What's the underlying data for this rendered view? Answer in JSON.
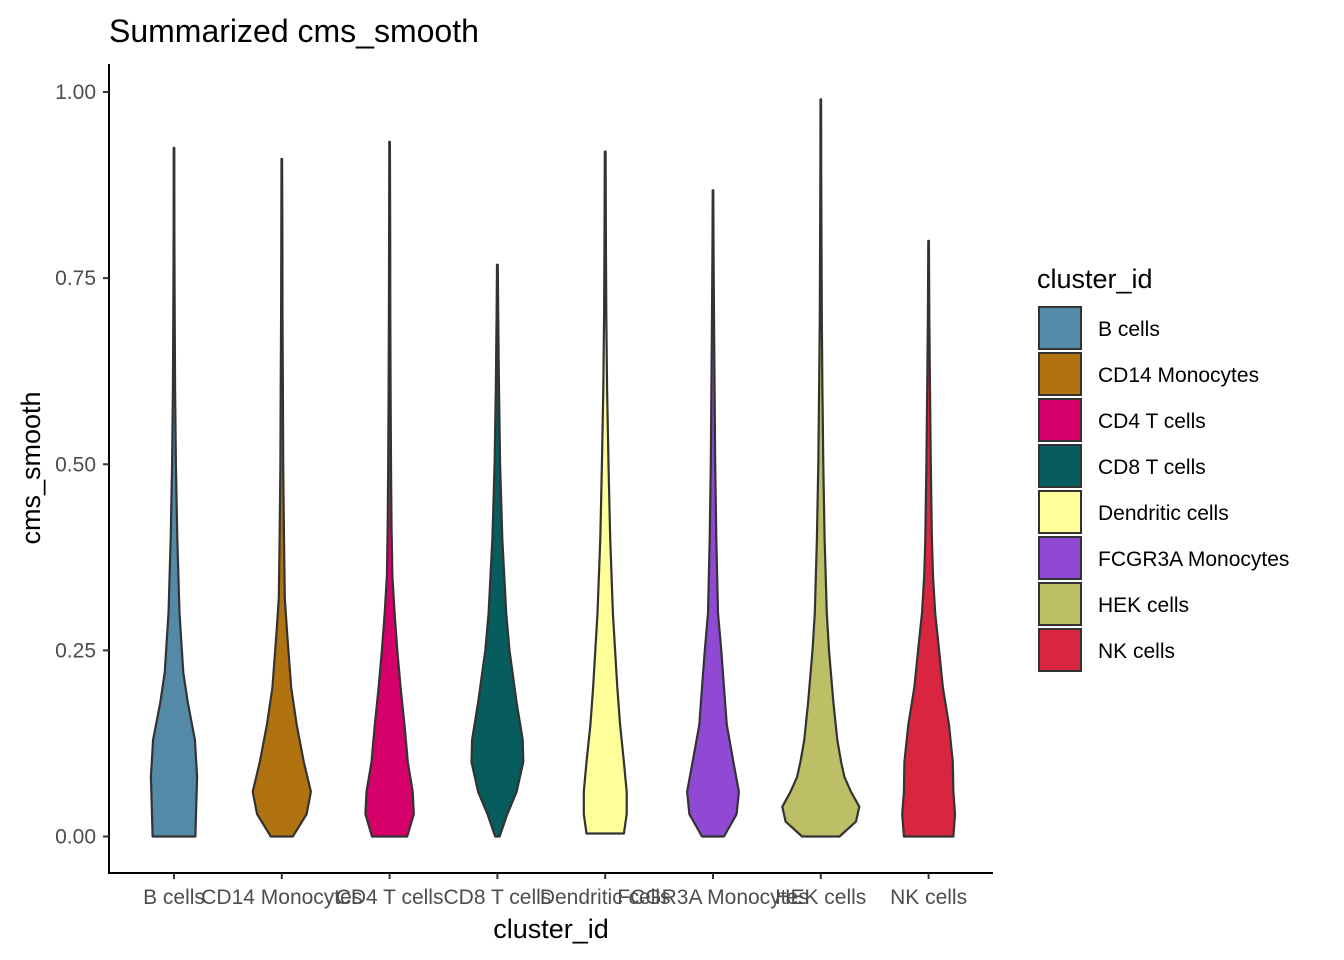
{
  "chart_data": {
    "type": "violin",
    "title": "Summarized cms_smooth",
    "xlabel": "cluster_id",
    "ylabel": "cms_smooth",
    "ylim": [
      -0.1,
      1.04
    ],
    "yticks": [
      "0.00",
      "0.25",
      "0.50",
      "0.75",
      "1.00"
    ],
    "yticks_values": [
      0,
      0.25,
      0.5,
      0.75,
      1.0
    ],
    "grid": false,
    "legend": {
      "title": "cluster_id",
      "position": "right"
    },
    "categories": [
      "B cells",
      "CD14 Monocytes",
      "CD4 T cells",
      "CD8 T cells",
      "Dendritic cells",
      "FCGR3A Monocytes",
      "HEK cells",
      "NK cells"
    ],
    "colors": [
      "#5489a8",
      "#b0730f",
      "#d5006a",
      "#075c5d",
      "#ffff99",
      "#8f49d3",
      "#bdbf67",
      "#d82640"
    ],
    "series": [
      {
        "name": "B cells",
        "min": 0.0,
        "max": 0.925,
        "profile": [
          [
            0.0,
            0.39
          ],
          [
            0.03,
            0.4
          ],
          [
            0.08,
            0.42
          ],
          [
            0.13,
            0.38
          ],
          [
            0.18,
            0.25
          ],
          [
            0.22,
            0.17
          ],
          [
            0.3,
            0.1
          ],
          [
            0.4,
            0.06
          ],
          [
            0.5,
            0.035
          ],
          [
            0.6,
            0.02
          ],
          [
            0.7,
            0.012
          ],
          [
            0.8,
            0.008
          ],
          [
            0.925,
            0.006
          ]
        ]
      },
      {
        "name": "CD14 Monocytes",
        "min": 0.0,
        "max": 0.91,
        "profile": [
          [
            0.0,
            0.2
          ],
          [
            0.03,
            0.45
          ],
          [
            0.06,
            0.53
          ],
          [
            0.1,
            0.4
          ],
          [
            0.15,
            0.27
          ],
          [
            0.2,
            0.17
          ],
          [
            0.27,
            0.1
          ],
          [
            0.32,
            0.055
          ],
          [
            0.4,
            0.04
          ],
          [
            0.5,
            0.025
          ],
          [
            0.6,
            0.02
          ],
          [
            0.7,
            0.012
          ],
          [
            0.8,
            0.01
          ],
          [
            0.91,
            0.006
          ]
        ]
      },
      {
        "name": "CD4 T cells",
        "min": 0.0,
        "max": 0.933,
        "profile": [
          [
            0.0,
            0.32
          ],
          [
            0.03,
            0.44
          ],
          [
            0.06,
            0.42
          ],
          [
            0.1,
            0.33
          ],
          [
            0.15,
            0.27
          ],
          [
            0.2,
            0.2
          ],
          [
            0.25,
            0.14
          ],
          [
            0.3,
            0.09
          ],
          [
            0.35,
            0.05
          ],
          [
            0.42,
            0.035
          ],
          [
            0.5,
            0.025
          ],
          [
            0.6,
            0.018
          ],
          [
            0.7,
            0.012
          ],
          [
            0.8,
            0.01
          ],
          [
            0.933,
            0.006
          ]
        ]
      },
      {
        "name": "CD8 T cells",
        "min": 0.0,
        "max": 0.768,
        "profile": [
          [
            0.0,
            0.04
          ],
          [
            0.03,
            0.18
          ],
          [
            0.06,
            0.35
          ],
          [
            0.1,
            0.47
          ],
          [
            0.13,
            0.46
          ],
          [
            0.18,
            0.35
          ],
          [
            0.25,
            0.22
          ],
          [
            0.3,
            0.16
          ],
          [
            0.4,
            0.09
          ],
          [
            0.5,
            0.05
          ],
          [
            0.6,
            0.03
          ],
          [
            0.7,
            0.015
          ],
          [
            0.768,
            0.008
          ]
        ]
      },
      {
        "name": "Dendritic cells",
        "min": 0.004,
        "max": 0.92,
        "profile": [
          [
            0.004,
            0.34
          ],
          [
            0.03,
            0.39
          ],
          [
            0.06,
            0.39
          ],
          [
            0.1,
            0.34
          ],
          [
            0.15,
            0.27
          ],
          [
            0.2,
            0.22
          ],
          [
            0.25,
            0.18
          ],
          [
            0.3,
            0.14
          ],
          [
            0.4,
            0.09
          ],
          [
            0.5,
            0.06
          ],
          [
            0.6,
            0.035
          ],
          [
            0.7,
            0.02
          ],
          [
            0.8,
            0.012
          ],
          [
            0.92,
            0.008
          ]
        ]
      },
      {
        "name": "FCGR3A Monocytes",
        "min": 0.0,
        "max": 0.868,
        "profile": [
          [
            0.0,
            0.2
          ],
          [
            0.03,
            0.43
          ],
          [
            0.06,
            0.47
          ],
          [
            0.1,
            0.37
          ],
          [
            0.15,
            0.25
          ],
          [
            0.2,
            0.2
          ],
          [
            0.25,
            0.15
          ],
          [
            0.3,
            0.09
          ],
          [
            0.4,
            0.06
          ],
          [
            0.5,
            0.04
          ],
          [
            0.6,
            0.03
          ],
          [
            0.7,
            0.018
          ],
          [
            0.8,
            0.01
          ],
          [
            0.868,
            0.006
          ]
        ]
      },
      {
        "name": "HEK cells",
        "min": 0.0,
        "max": 0.99,
        "profile": [
          [
            0.0,
            0.34
          ],
          [
            0.02,
            0.64
          ],
          [
            0.04,
            0.7
          ],
          [
            0.06,
            0.55
          ],
          [
            0.08,
            0.43
          ],
          [
            0.1,
            0.37
          ],
          [
            0.13,
            0.3
          ],
          [
            0.18,
            0.23
          ],
          [
            0.25,
            0.15
          ],
          [
            0.3,
            0.11
          ],
          [
            0.4,
            0.07
          ],
          [
            0.5,
            0.045
          ],
          [
            0.6,
            0.03
          ],
          [
            0.7,
            0.018
          ],
          [
            0.8,
            0.012
          ],
          [
            0.9,
            0.008
          ],
          [
            0.99,
            0.006
          ]
        ]
      },
      {
        "name": "NK cells",
        "min": 0.0,
        "max": 0.8,
        "profile": [
          [
            0.0,
            0.45
          ],
          [
            0.03,
            0.48
          ],
          [
            0.06,
            0.45
          ],
          [
            0.1,
            0.44
          ],
          [
            0.15,
            0.37
          ],
          [
            0.2,
            0.26
          ],
          [
            0.25,
            0.19
          ],
          [
            0.3,
            0.12
          ],
          [
            0.35,
            0.08
          ],
          [
            0.4,
            0.06
          ],
          [
            0.5,
            0.04
          ],
          [
            0.6,
            0.025
          ],
          [
            0.7,
            0.012
          ],
          [
            0.8,
            0.006
          ]
        ]
      }
    ]
  }
}
